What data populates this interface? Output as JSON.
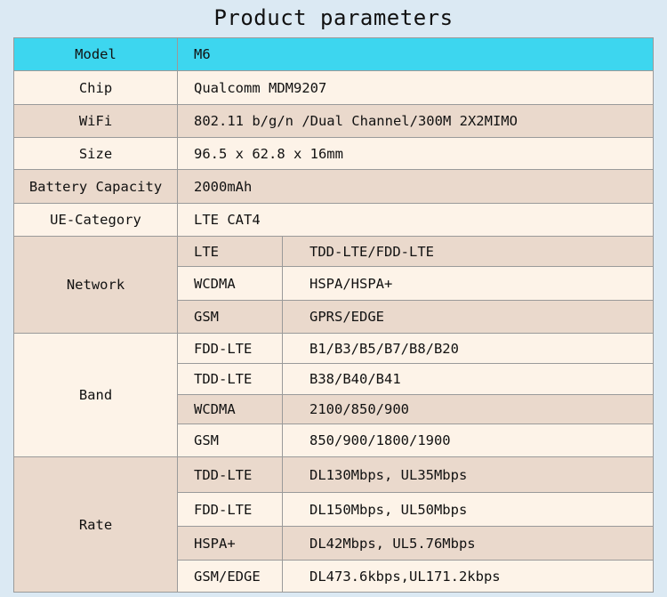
{
  "title": "Product parameters",
  "rows": {
    "model": {
      "label": "Model",
      "value": "M6"
    },
    "chip": {
      "label": "Chip",
      "value": "Qualcomm MDM9207"
    },
    "wifi": {
      "label": "WiFi",
      "value": "802.11 b/g/n /Dual Channel/300M 2X2MIMO"
    },
    "size": {
      "label": "Size",
      "value": "96.5 x 62.8 x 16mm"
    },
    "battery": {
      "label": "Battery Capacity",
      "value": "2000mAh"
    },
    "ue": {
      "label": "UE-Category",
      "value": "LTE CAT4"
    }
  },
  "network": {
    "label": "Network",
    "items": [
      {
        "type": "LTE",
        "value": "TDD-LTE/FDD-LTE"
      },
      {
        "type": "WCDMA",
        "value": "HSPA/HSPA+"
      },
      {
        "type": "GSM",
        "value": "GPRS/EDGE"
      }
    ]
  },
  "band": {
    "label": "Band",
    "items": [
      {
        "type": "FDD-LTE",
        "value": "B1/B3/B5/B7/B8/B20"
      },
      {
        "type": "TDD-LTE",
        "value": "B38/B40/B41"
      },
      {
        "type": "WCDMA",
        "value": "2100/850/900"
      },
      {
        "type": "GSM",
        "value": "850/900/1800/1900"
      }
    ]
  },
  "rate": {
    "label": "Rate",
    "items": [
      {
        "type": "TDD-LTE",
        "value": "DL130Mbps, UL35Mbps"
      },
      {
        "type": "FDD-LTE",
        "value": "DL150Mbps, UL50Mbps"
      },
      {
        "type": "HSPA+",
        "value": "DL42Mbps, UL5.76Mbps"
      },
      {
        "type": "GSM/EDGE",
        "value": "DL473.6kbps,UL171.2kbps"
      }
    ]
  }
}
